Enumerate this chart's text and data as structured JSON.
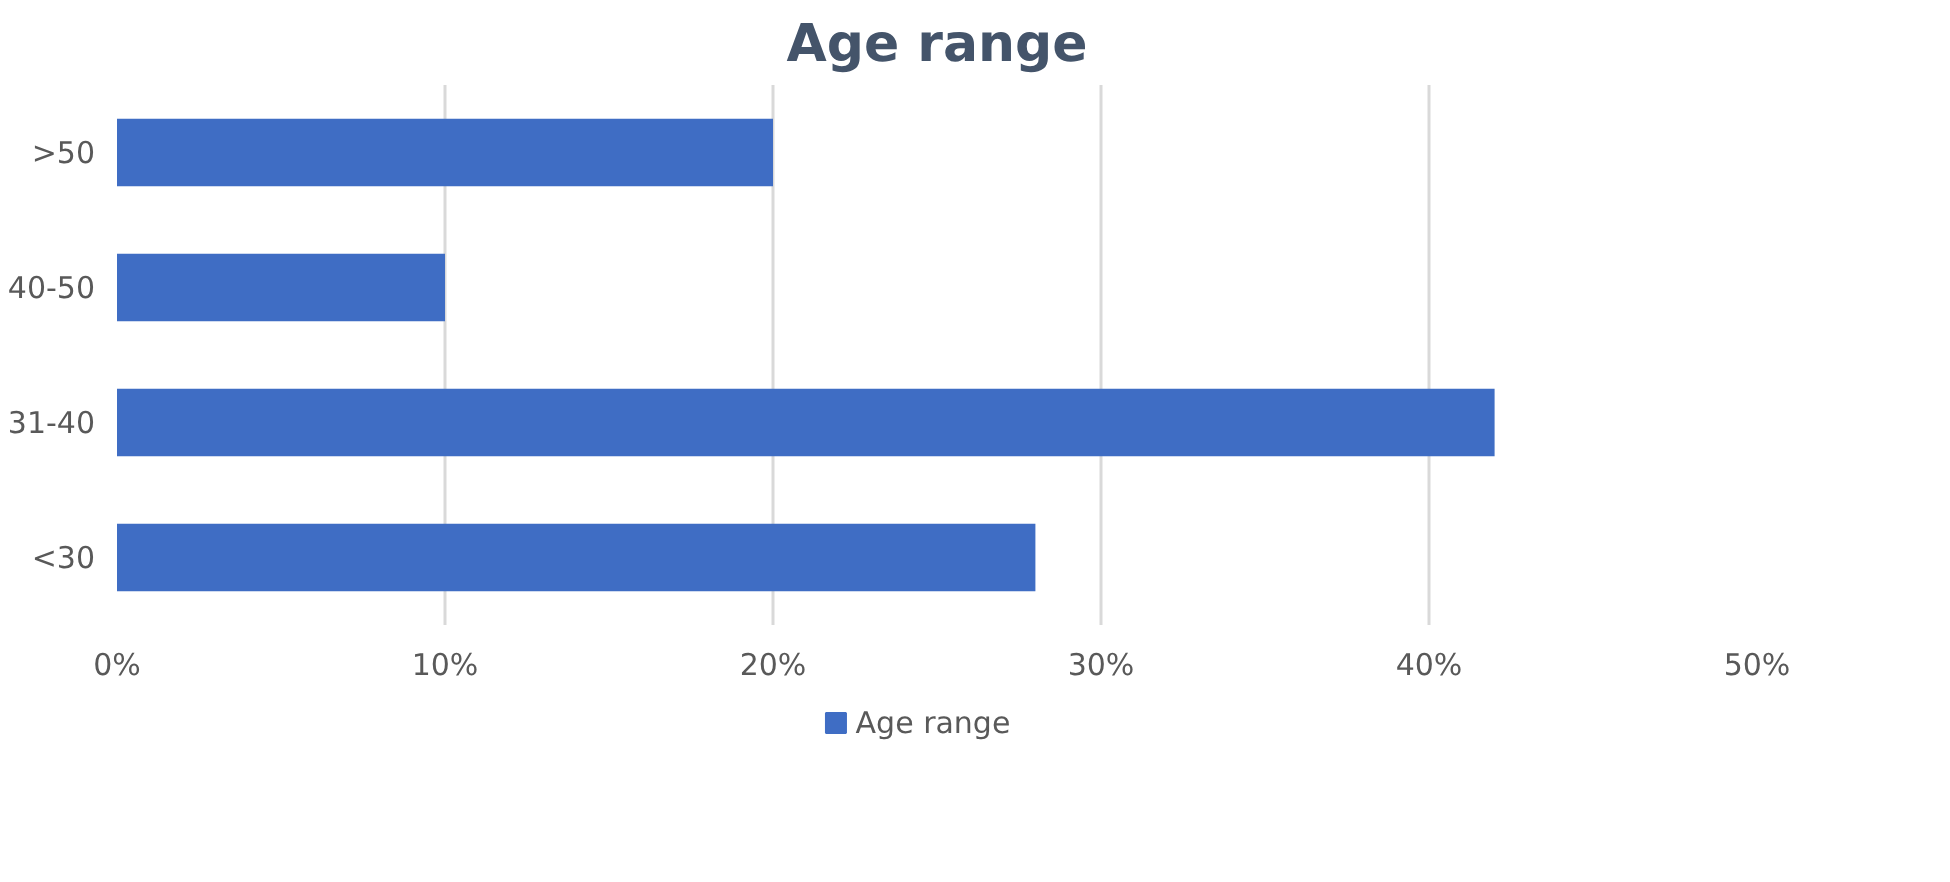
{
  "chart_data": {
    "type": "bar",
    "orientation": "horizontal",
    "title": "Age range",
    "categories": [
      ">50",
      "40-50",
      "31-40",
      "<30"
    ],
    "series": [
      {
        "name": "Age range",
        "color": "#3f6dc4",
        "values": [
          20,
          10,
          42,
          28
        ]
      }
    ],
    "xlim": [
      0,
      50
    ],
    "xticks": [
      {
        "value": 0,
        "label": "0%"
      },
      {
        "value": 10,
        "label": "10%"
      },
      {
        "value": 20,
        "label": "20%"
      },
      {
        "value": 30,
        "label": "30%"
      },
      {
        "value": 40,
        "label": "40%"
      },
      {
        "value": 50,
        "label": "50%"
      }
    ],
    "grid": "x",
    "legend": "bottom"
  }
}
